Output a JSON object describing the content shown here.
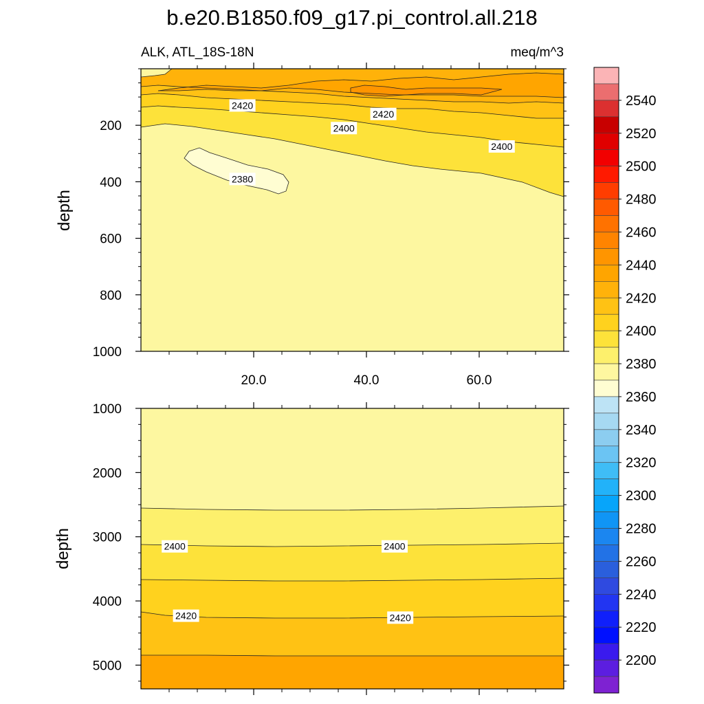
{
  "chart_data": {
    "type": "contour",
    "title": "b.e20.B1850.f09_g17.pi_control.all.218",
    "subtitle_left": "ALK, ATL_18S-18N",
    "subtitle_right": "meq/m^3",
    "ylabel": "depth",
    "x_tick_labels": [
      "20.0",
      "40.0",
      "60.0"
    ],
    "x_ticks": [
      20,
      40,
      60
    ],
    "xlim": [
      0,
      75
    ],
    "upper_panel": {
      "ylim": [
        1000,
        0
      ],
      "y_ticks": [
        200,
        400,
        600,
        800,
        1000
      ],
      "y_tick_labels": [
        "200",
        "400",
        "600",
        "800",
        "1000"
      ],
      "contour_labels": [
        {
          "text": "2420",
          "x": 18,
          "depth": 130
        },
        {
          "text": "2420",
          "x": 43,
          "depth": 160
        },
        {
          "text": "2400",
          "x": 36,
          "depth": 210
        },
        {
          "text": "2400",
          "x": 64,
          "depth": 275
        },
        {
          "text": "2380",
          "x": 18,
          "depth": 390
        }
      ]
    },
    "lower_panel": {
      "ylim": [
        5370,
        1000
      ],
      "y_ticks": [
        1000,
        2000,
        3000,
        4000,
        5000
      ],
      "y_tick_labels": [
        "1000",
        "2000",
        "3000",
        "4000",
        "5000"
      ],
      "contour_labels": [
        {
          "text": "2400",
          "x": 6,
          "depth": 3150
        },
        {
          "text": "2400",
          "x": 45,
          "depth": 3150
        },
        {
          "text": "2420",
          "x": 8,
          "depth": 4230
        },
        {
          "text": "2420",
          "x": 46,
          "depth": 4260
        }
      ]
    },
    "colorbar": {
      "label_values": [
        "2540",
        "2520",
        "2500",
        "2480",
        "2460",
        "2440",
        "2420",
        "2400",
        "2380",
        "2360",
        "2340",
        "2320",
        "2300",
        "2280",
        "2260",
        "2240",
        "2220",
        "2200"
      ],
      "colors": [
        "#fbb4b6",
        "#eb6e6f",
        "#dc3030",
        "#c80000",
        "#e00000",
        "#f20000",
        "#ff1a00",
        "#ff3d00",
        "#ff5a00",
        "#ff7200",
        "#ff8400",
        "#ff9500",
        "#ffa500",
        "#ffb20a",
        "#ffc214",
        "#ffd21e",
        "#fde23a",
        "#fdf06c",
        "#fef7a0",
        "#fffdd2",
        "#bde3f5",
        "#a6d9f2",
        "#8ccdf0",
        "#6bc4f3",
        "#3fbdf6",
        "#22b2f9",
        "#07a5fa",
        "#1095f5",
        "#1b86f0",
        "#2272e6",
        "#2a5fdc",
        "#2f4ae0",
        "#2235f2",
        "#1020fa",
        "#0010ff",
        "#3a1aee",
        "#5c1ee0",
        "#7e22d2"
      ]
    }
  }
}
